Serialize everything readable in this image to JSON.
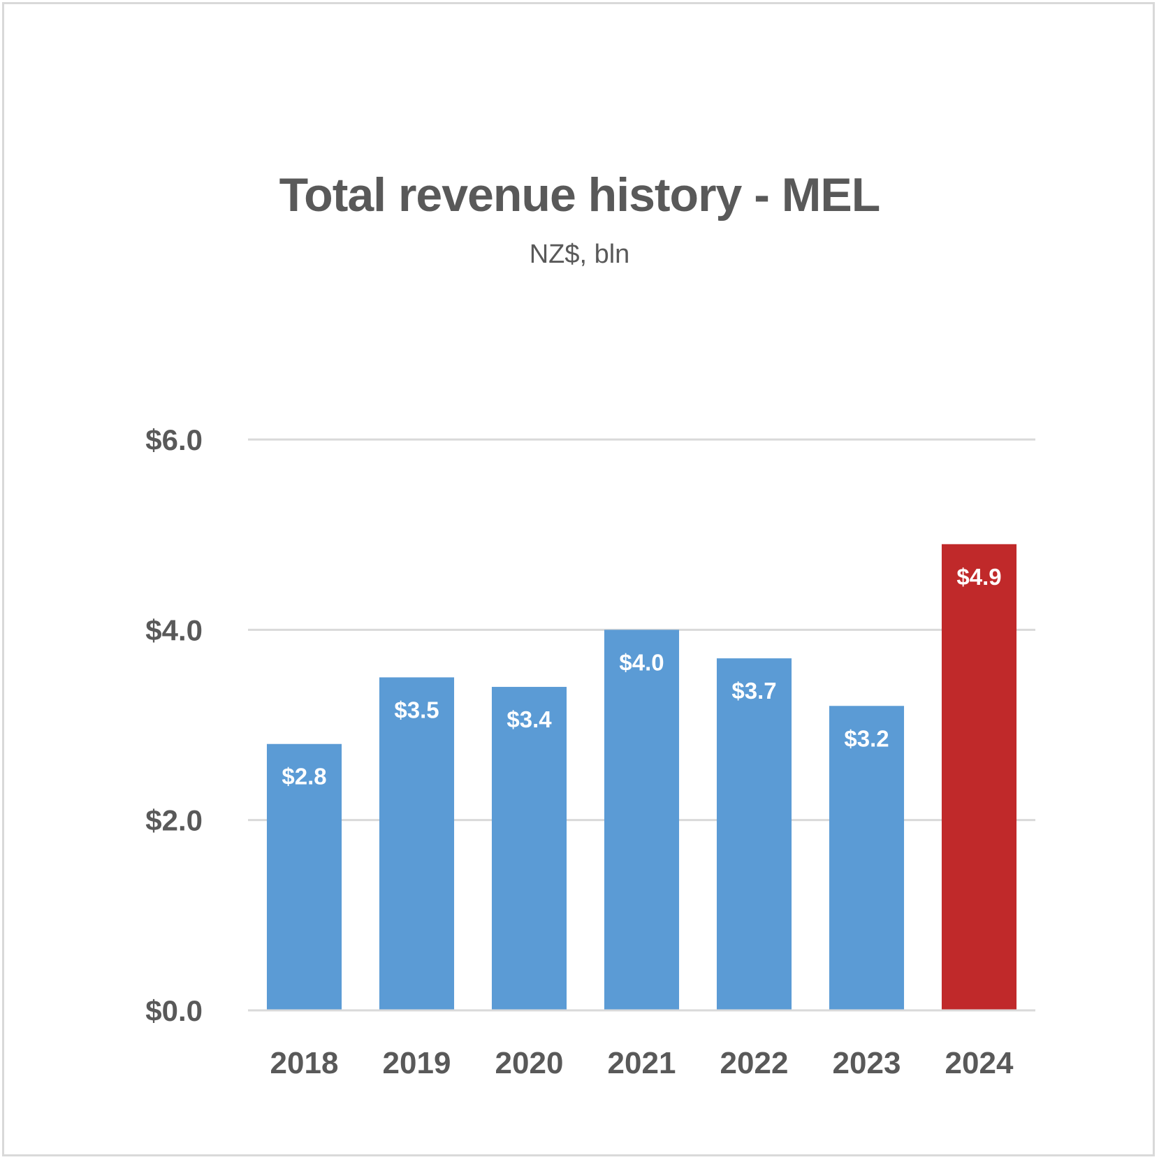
{
  "chart_data": {
    "type": "bar",
    "title": "Total revenue history - MEL",
    "subtitle": "NZ$, bln",
    "xlabel": "",
    "ylabel": "",
    "categories": [
      "2018",
      "2019",
      "2020",
      "2021",
      "2022",
      "2023",
      "2024"
    ],
    "values": [
      2.8,
      3.5,
      3.4,
      4.0,
      3.7,
      3.2,
      4.9
    ],
    "data_labels": [
      "$2.8",
      "$3.5",
      "$3.4",
      "$4.0",
      "$3.7",
      "$3.2",
      "$4.9"
    ],
    "ylim": [
      0,
      6
    ],
    "yticks": [
      0,
      2,
      4,
      6
    ],
    "ytick_labels": [
      "$0.0",
      "$2.0",
      "$4.0",
      "$6.0"
    ],
    "grid": true,
    "legend": "none",
    "colors": {
      "default_bar": "#5B9BD5",
      "highlight_bar": "#C0292A",
      "text": "#595959",
      "gridline": "#D9D9D9"
    },
    "highlight_category": "2024"
  }
}
